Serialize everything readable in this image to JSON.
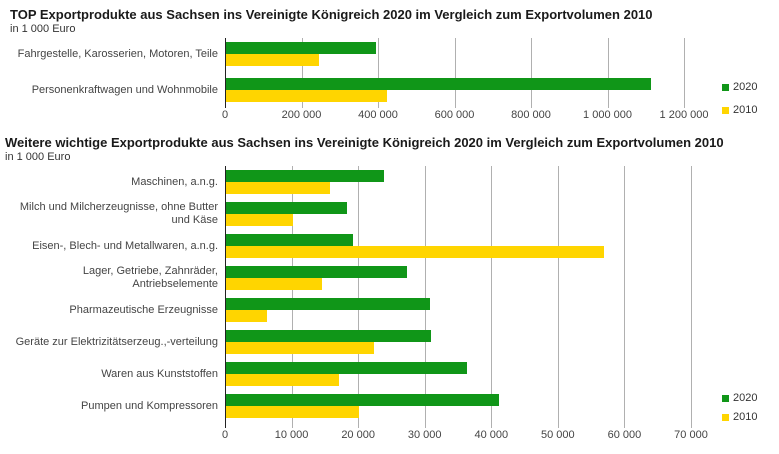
{
  "page": {
    "background": "#ffffff"
  },
  "colors": {
    "series_2020": "#109618",
    "series_2010": "#ffd500",
    "gridline": "#b0b0b0",
    "axis": "#222222",
    "label_text": "#444444",
    "title_text": "#1a1a1a"
  },
  "chart_data": [
    {
      "type": "bar",
      "orientation": "horizontal",
      "title": "TOP Exportprodukte aus Sachsen ins Vereinigte Königreich 2020 im Vergleich zum Exportvolumen 2010",
      "subtitle": "in 1 000 Euro",
      "categories": [
        "Fahrgestelle, Karosserien, Motoren, Teile",
        "Personenkraftwagen und Wohnmobile"
      ],
      "series": [
        {
          "name": "2020",
          "color": "#109618",
          "values": [
            396000,
            1115000
          ]
        },
        {
          "name": "2010",
          "color": "#ffd500",
          "values": [
            246000,
            424000
          ]
        }
      ],
      "xlim": [
        0,
        1200000
      ],
      "xtick_step": 200000,
      "xtick_labels": [
        "0",
        "200 000",
        "400 000",
        "600 000",
        "800 000",
        "1 000 000",
        "1 200 000"
      ],
      "grid": true,
      "legend_position": "right"
    },
    {
      "type": "bar",
      "orientation": "horizontal",
      "title": "Weitere wichtige Exportprodukte aus Sachsen ins Vereinigte Königreich 2020 im Vergleich zum Exportvolumen 2010",
      "subtitle": "in 1 000 Euro",
      "categories": [
        "Maschinen, a.n.g.",
        "Milch und Milcherzeugnisse, ohne Butter und Käse",
        "Eisen-, Blech- und Metallwaren, a.n.g.",
        "Lager, Getriebe, Zahnräder, Antriebselemente",
        "Pharmazeutische Erzeugnisse",
        "Geräte zur Elektrizitätserzeug.,-verteilung",
        "Waren aus Kunststoffen",
        "Pumpen und Kompressoren"
      ],
      "series": [
        {
          "name": "2020",
          "color": "#109618",
          "values": [
            23900,
            18300,
            19300,
            27400,
            30800,
            30900,
            36400,
            41100
          ]
        },
        {
          "name": "2010",
          "color": "#ffd500",
          "values": [
            15800,
            10200,
            57000,
            14500,
            6300,
            22400,
            17100,
            20200
          ]
        }
      ],
      "xlim": [
        0,
        70000
      ],
      "xtick_step": 10000,
      "xtick_labels": [
        "0",
        "10 000",
        "20 000",
        "30 000",
        "40 000",
        "50 000",
        "60 000",
        "70 000"
      ],
      "grid": true,
      "legend_position": "right"
    }
  ]
}
